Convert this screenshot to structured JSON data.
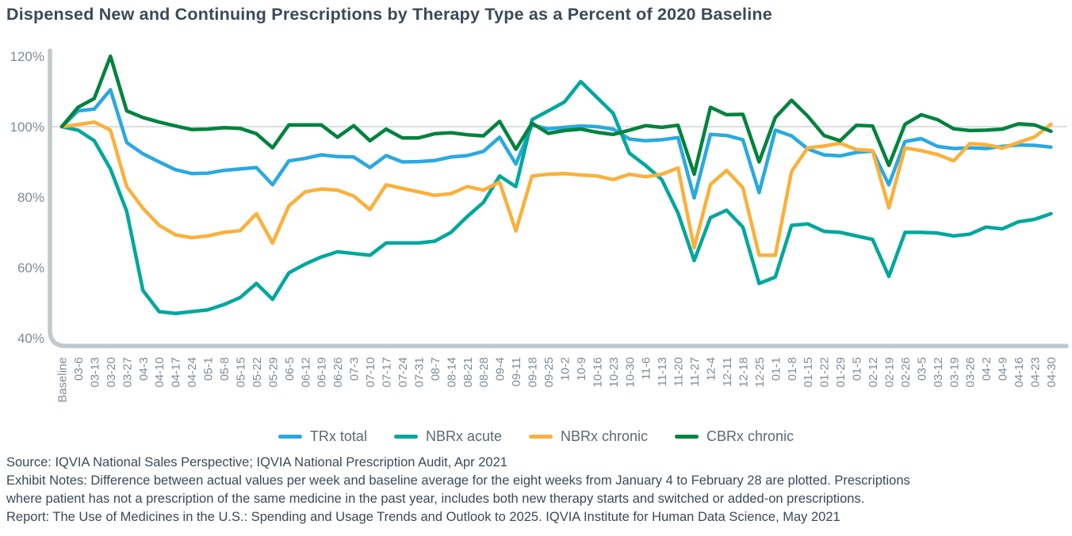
{
  "title": "Dispensed New and Continuing Prescriptions by Therapy Type as a Percent of 2020 Baseline",
  "colors": {
    "trx_total": "#29A9E0",
    "nbrx_acute": "#00A79D",
    "nbrx_chronic": "#FBB03B",
    "cbrx_chronic": "#00833E",
    "axis_line": "#C2C8CC",
    "gridline": "#D0D4D7",
    "tick_text": "#7F8A95",
    "body_text": "#3C4957"
  },
  "chart_data": {
    "type": "line",
    "title": "Dispensed New and Continuing Prescriptions by Therapy Type as a Percent of 2020 Baseline",
    "xlabel": "",
    "ylabel": "Percent of 2020 baseline",
    "ylim": [
      40,
      120
    ],
    "y_ticks": [
      "120%",
      "100%",
      "80%",
      "60%",
      "40%"
    ],
    "y_tick_values": [
      120,
      100,
      80,
      60,
      40
    ],
    "grid": "horizontal line at 100% only",
    "legend_position": "bottom center",
    "x_labels": [
      "Baseline",
      "03-6",
      "03-13",
      "03-20",
      "03-27",
      "04-3",
      "04-10",
      "04-17",
      "04-24",
      "05-1",
      "05-8",
      "05-15",
      "05-22",
      "05-29",
      "06-5",
      "06-12",
      "06-19",
      "06-26",
      "07-3",
      "07-10",
      "07-17",
      "07-24",
      "07-31",
      "08-7",
      "08-14",
      "08-21",
      "08-28",
      "09-4",
      "09-11",
      "09-18",
      "09-25",
      "10-2",
      "10-9",
      "10-16",
      "10-23",
      "10-30",
      "11-6",
      "11-13",
      "11-20",
      "11-27",
      "12-4",
      "12-11",
      "12-18",
      "12-25",
      "01-1",
      "01-8",
      "01-15",
      "01-22",
      "01-29",
      "01-5",
      "02-12",
      "02-19",
      "02-26",
      "03-5",
      "03-12",
      "03-19",
      "03-26",
      "04-2",
      "04-9",
      "04-16",
      "04-23",
      "04-30"
    ],
    "series": [
      {
        "name": "TRx total",
        "color": "#29A9E0",
        "values": [
          100,
          104.5,
          105,
          110.5,
          95.5,
          92.3,
          90,
          87.8,
          86.7,
          86.8,
          87.6,
          88,
          88.4,
          83.5,
          90.3,
          91,
          92,
          91.5,
          91.4,
          88.4,
          91.8,
          90,
          90.1,
          90.4,
          91.4,
          91.8,
          93,
          97,
          89.4,
          100.4,
          99.4,
          99.8,
          100.2,
          100,
          99.3,
          96.5,
          96,
          96.3,
          96.9,
          79.8,
          97.8,
          97.5,
          96.3,
          81.3,
          99,
          97.4,
          93.7,
          92,
          91.7,
          92.7,
          93.1,
          83.5,
          95.8,
          96.6,
          94.4,
          93.8,
          94,
          93.8,
          94.4,
          94.8,
          94.7,
          94.2
        ]
      },
      {
        "name": "NBRx acute",
        "color": "#00A79D",
        "values": [
          100,
          99,
          96,
          88,
          76,
          53.5,
          47.5,
          47,
          47.5,
          48,
          49.5,
          51.5,
          55.5,
          51,
          58.5,
          61,
          63,
          64.5,
          64,
          63.5,
          67,
          67,
          67,
          67.5,
          70,
          74.5,
          78.5,
          86,
          83,
          102,
          104.5,
          107,
          112.8,
          108.3,
          103.8,
          92.5,
          89,
          85,
          75.5,
          62,
          74.2,
          76.3,
          71.5,
          55.5,
          57.3,
          72,
          72.4,
          70.3,
          70,
          69,
          68,
          57.5,
          70,
          70,
          69.8,
          69,
          69.5,
          71.5,
          71,
          73,
          73.7,
          75.3
        ]
      },
      {
        "name": "NBRx chronic",
        "color": "#FBB03B",
        "values": [
          100,
          100.6,
          101.3,
          99,
          83,
          76.8,
          72,
          69.3,
          68.5,
          69,
          70,
          70.5,
          75.3,
          67,
          77.5,
          81.5,
          82.3,
          82,
          80.3,
          76.5,
          83.5,
          82.5,
          81.5,
          80.5,
          81,
          83,
          82,
          84.3,
          70.4,
          86,
          86.5,
          86.7,
          86.3,
          86,
          85,
          86.5,
          85.8,
          86.5,
          88.3,
          65.6,
          83.6,
          87.6,
          82.7,
          63.5,
          63.5,
          87.3,
          94,
          94.5,
          95.3,
          93.5,
          93.2,
          77,
          94,
          93.2,
          92.1,
          90.3,
          95.2,
          94.9,
          93.9,
          95.5,
          97.1,
          100.7
        ]
      },
      {
        "name": "CBRx chronic",
        "color": "#00833E",
        "values": [
          100,
          105.5,
          108,
          120,
          104.5,
          102.6,
          101.3,
          100.2,
          99.2,
          99.3,
          99.7,
          99.5,
          98,
          94,
          100.5,
          100.5,
          100.5,
          97,
          100.3,
          96,
          99.3,
          96.8,
          96.8,
          98,
          98.3,
          97.7,
          97.4,
          101.5,
          93.6,
          101,
          98.1,
          98.9,
          99.3,
          98.4,
          97.8,
          99,
          100.3,
          99.8,
          100.4,
          86.5,
          105.5,
          103.4,
          103.5,
          90,
          102.6,
          107.5,
          103,
          97.5,
          96,
          100.4,
          100.2,
          89,
          100.7,
          103.4,
          102,
          99.4,
          98.9,
          99,
          99.3,
          100.8,
          100.5,
          98.7
        ]
      }
    ]
  },
  "footer": {
    "lines": [
      "Source: IQVIA National Sales Perspective; IQVIA National Prescription Audit, Apr 2021",
      "Exhibit Notes: Difference between actual values per week and baseline average for the eight weeks from January 4 to February 28 are plotted. Prescriptions",
      "where patient has not a prescription of the same medicine in the past year, includes both new therapy starts and switched or added-on prescriptions.",
      "Report: The Use of Medicines in the U.S.: Spending and Usage Trends and Outlook to 2025. IQVIA Institute for Human Data Science, May 2021"
    ]
  }
}
